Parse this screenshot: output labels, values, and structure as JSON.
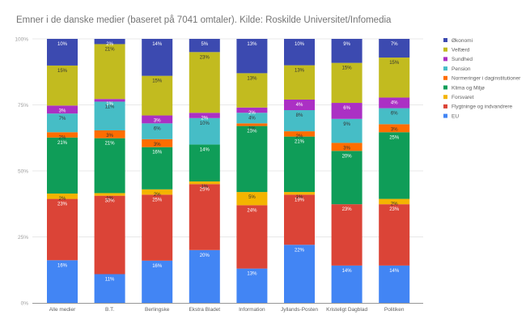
{
  "chart_data": {
    "type": "bar",
    "stacked": true,
    "normalized": true,
    "title": "Emner i de danske medier (baseret på 7041 omtaler). Kilde: Roskilde Universitet/Infomedia",
    "xlabel": "",
    "ylabel": "",
    "ylim": [
      0,
      100
    ],
    "yticks": [
      "0%",
      "25%",
      "50%",
      "75%",
      "100%"
    ],
    "grid": true,
    "legend_position": "right",
    "categories": [
      "Alle medier",
      "B.T.",
      "Berlingske",
      "Ekstra Bladet",
      "Information",
      "Jyllands-Posten",
      "Kristeligt Dagblad",
      "Politiken"
    ],
    "series": [
      {
        "name": "EU",
        "color": "#4285f4",
        "label_color": "#ffffff",
        "values": [
          16,
          11,
          16,
          20,
          13,
          22,
          14,
          14
        ]
      },
      {
        "name": "Flygtninge og indvandrere",
        "color": "#db4437",
        "label_color": "#ffffff",
        "values": [
          23,
          30,
          25,
          25,
          24,
          19,
          23,
          23
        ]
      },
      {
        "name": "Forsvaret",
        "color": "#f4b400",
        "label_color": "#333333",
        "values": [
          2,
          1,
          2,
          1,
          5,
          1,
          0,
          2
        ]
      },
      {
        "name": "Klima og Miljø",
        "color": "#0f9d58",
        "label_color": "#ffffff",
        "values": [
          21,
          21,
          16,
          14,
          25,
          21,
          20,
          25
        ]
      },
      {
        "name": "Normeringer i daginstitutioner",
        "color": "#ff6d00",
        "label_color": "#333333",
        "values": [
          2,
          3,
          3,
          0,
          1,
          2,
          3,
          3
        ]
      },
      {
        "name": "Pension",
        "color": "#46bdc6",
        "label_color": "#333333",
        "values": [
          7,
          11,
          6,
          10,
          4,
          8,
          9,
          6
        ]
      },
      {
        "name": "Sundhed",
        "color": "#ab30c4",
        "label_color": "#ffffff",
        "values": [
          3,
          1,
          3,
          2,
          2,
          4,
          6,
          4
        ]
      },
      {
        "name": "Velfærd",
        "color": "#c2bb1f",
        "label_color": "#333333",
        "values": [
          15,
          21,
          15,
          23,
          13,
          13,
          15,
          15
        ]
      },
      {
        "name": "Økonomi",
        "color": "#3c4ab0",
        "label_color": "#ffffff",
        "values": [
          10,
          2,
          14,
          5,
          13,
          10,
          9,
          7
        ]
      }
    ],
    "legend_order": [
      "Økonomi",
      "Velfærd",
      "Sundhed",
      "Pension",
      "Normeringer i daginstitutioner",
      "Klima og Miljø",
      "Forsvaret",
      "Flygtninge og indvandrere",
      "EU"
    ]
  }
}
